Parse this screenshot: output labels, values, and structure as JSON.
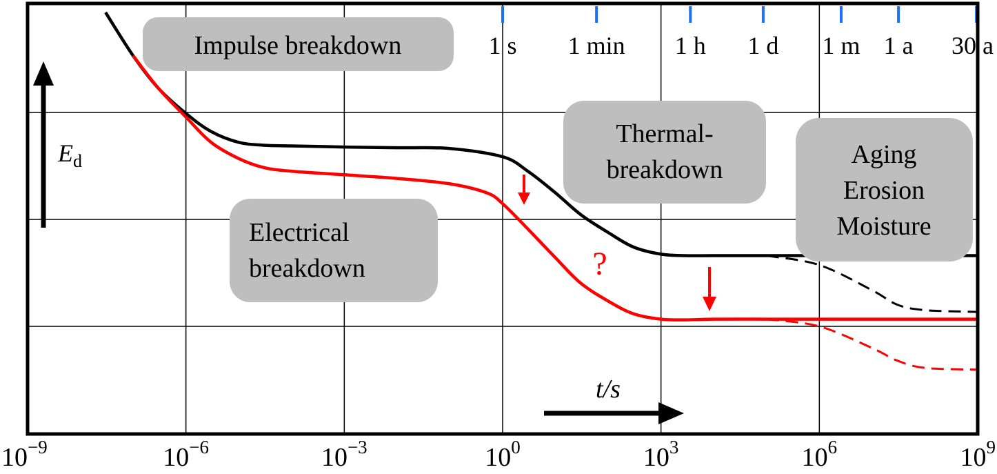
{
  "chart_data": {
    "type": "line",
    "x_scale": "log",
    "xlim": [
      1e-09,
      1000000000.0
    ],
    "grid": true,
    "legend": "none",
    "x_ticks": [
      {
        "value": 1e-09,
        "base": "10",
        "exp": "−9"
      },
      {
        "value": 1e-06,
        "base": "10",
        "exp": "−6"
      },
      {
        "value": 0.001,
        "base": "10",
        "exp": "−3"
      },
      {
        "value": 1,
        "base": "10",
        "exp": "0"
      },
      {
        "value": 1000.0,
        "base": "10",
        "exp": "3"
      },
      {
        "value": 1000000.0,
        "base": "10",
        "exp": "6"
      },
      {
        "value": 1000000000.0,
        "base": "10",
        "exp": "9"
      }
    ],
    "time_ticks": [
      {
        "label": "1 s",
        "value": 1
      },
      {
        "label": "1 min",
        "value": 60
      },
      {
        "label": "1 h",
        "value": 3600
      },
      {
        "label": "1 d",
        "value": 86400
      },
      {
        "label": "1 m",
        "value": 2592000
      },
      {
        "label": "1 a",
        "value": 31536000
      },
      {
        "label": "30 a",
        "value": 946080000
      }
    ],
    "xlabel": "t/s",
    "ylabel": {
      "main": "E",
      "sub": "d"
    },
    "ylim": [
      0,
      100
    ],
    "series": [
      {
        "color": "#000000",
        "style": "solid",
        "x": [
          3e-08,
          1e-07,
          3e-07,
          1e-06,
          3e-06,
          1e-05,
          3e-05,
          0.0001,
          0.001,
          0.01,
          0.1,
          1,
          3,
          10,
          30,
          100,
          300,
          1000,
          3000,
          10000.0,
          100000.0,
          1000000.0,
          10000000.0,
          100000000.0,
          1000000000.0
        ],
        "y": [
          100,
          88,
          79,
          72,
          67,
          64,
          63.2,
          63,
          62.7,
          62.5,
          62.3,
          60,
          56,
          50,
          44,
          39,
          35,
          33,
          32.6,
          32.6,
          32.6,
          32.6,
          32.6,
          32.6,
          32.6
        ]
      },
      {
        "color": "#000000",
        "style": "dashed",
        "x": [
          100000.0,
          1000000.0,
          10000000.0,
          30000000.0,
          100000000.0,
          1000000000.0
        ],
        "y": [
          32.6,
          30,
          23,
          19,
          17.5,
          17
        ]
      },
      {
        "color": "#ff0000",
        "style": "solid",
        "x": [
          1e-07,
          3e-07,
          1e-06,
          3e-06,
          1e-05,
          3e-05,
          0.0001,
          0.001,
          0.01,
          0.1,
          0.5,
          1,
          3,
          10,
          30,
          100,
          300,
          1000,
          3000,
          10000.0,
          100000.0,
          1000000.0,
          10000000.0,
          100000000.0,
          1000000000.0
        ],
        "y": [
          88,
          79,
          71,
          64,
          59.5,
          57,
          56,
          55,
          54,
          52.5,
          50,
          47,
          40,
          32,
          25,
          20,
          16.5,
          15,
          14.8,
          15,
          15,
          15,
          15,
          15,
          15
        ]
      },
      {
        "color": "#ff0000",
        "style": "dashed",
        "x": [
          100000.0,
          1000000.0,
          10000000.0,
          30000000.0,
          100000000.0,
          1000000000.0
        ],
        "y": [
          15,
          13,
          7,
          3.5,
          1.5,
          1
        ]
      }
    ],
    "annotations": [
      {
        "id": "impulse",
        "lines": [
          "Impulse breakdown"
        ]
      },
      {
        "id": "electrical",
        "lines": [
          "Electrical",
          "breakdown"
        ]
      },
      {
        "id": "thermal",
        "lines": [
          "Thermal-",
          "breakdown"
        ]
      },
      {
        "id": "aging",
        "lines": [
          "Aging",
          "Erosion",
          "Moisture"
        ]
      },
      {
        "id": "question",
        "text": "?"
      }
    ],
    "colors": {
      "grid": "#000000",
      "time_tick": "#1f6fff",
      "box": "#bebebe",
      "red": "#ff0000"
    }
  }
}
